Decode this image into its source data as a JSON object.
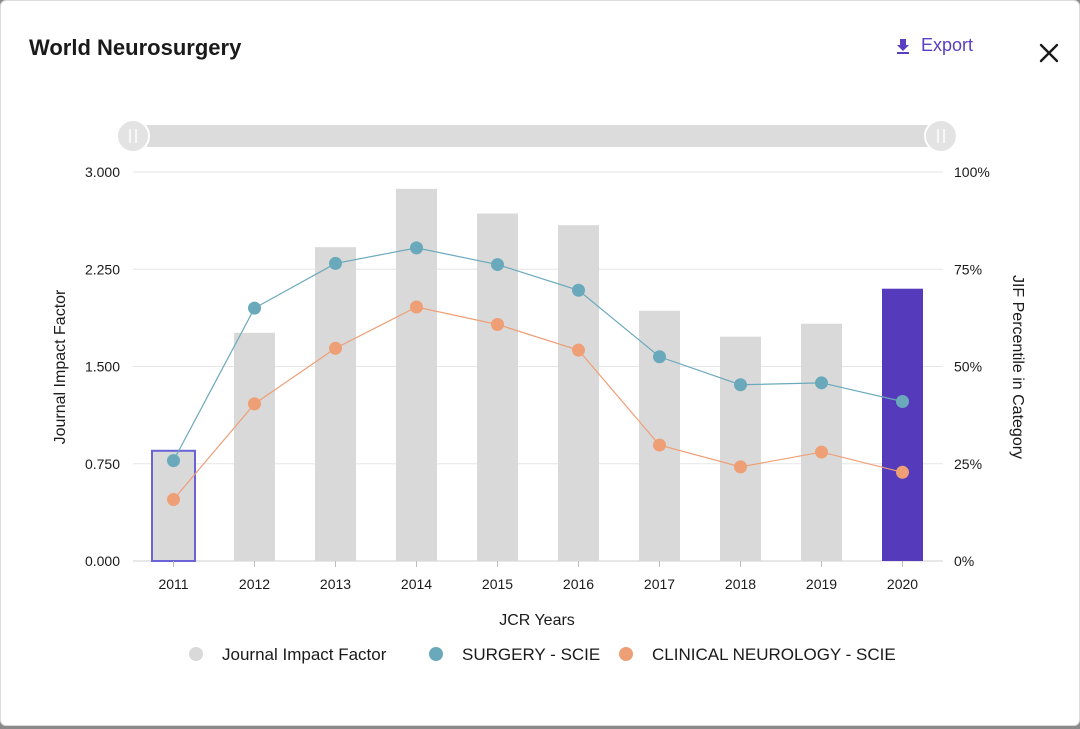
{
  "header": {
    "title": "World Neurosurgery",
    "export_label": "Export",
    "export_icon": "download-icon",
    "close_icon": "close-icon"
  },
  "colors": {
    "bar": "#d9d9d9",
    "bar_selected_fill": "#d9d9d9",
    "bar_selected_border": "#6a63d6",
    "bar_highlight": "#553bbb",
    "surgery": "#6aa9bb",
    "neurology": "#ee9f76",
    "accent": "#5a3fc0"
  },
  "chart_data": {
    "type": "bar",
    "categories": [
      "2011",
      "2012",
      "2013",
      "2014",
      "2015",
      "2016",
      "2017",
      "2018",
      "2019",
      "2020"
    ],
    "xlabel": "JCR Years",
    "ylabel": "Journal Impact Factor",
    "y2label": "JIF Percentile in Category",
    "ylim": [
      0,
      3
    ],
    "y2lim": [
      0,
      100
    ],
    "yticks": [
      "0.000",
      "0.750",
      "1.500",
      "2.250",
      "3.000"
    ],
    "y2ticks": [
      "0%",
      "25%",
      "50%",
      "75%",
      "100%"
    ],
    "grid": true,
    "selected_category": "2011",
    "highlighted_category": "2020",
    "series": [
      {
        "name": "Journal Impact Factor",
        "type": "bar",
        "axis": "left",
        "values": [
          0.85,
          1.76,
          2.42,
          2.87,
          2.68,
          2.59,
          1.93,
          1.73,
          1.83,
          2.1
        ]
      },
      {
        "name": "SURGERY - SCIE",
        "type": "line",
        "axis": "right",
        "values": [
          25.8,
          65.0,
          76.5,
          80.5,
          76.2,
          69.6,
          52.5,
          45.3,
          45.8,
          41.0
        ]
      },
      {
        "name": "CLINICAL NEUROLOGY - SCIE",
        "type": "line",
        "axis": "right",
        "values": [
          15.8,
          40.4,
          54.7,
          65.3,
          60.8,
          54.2,
          29.8,
          24.2,
          28.0,
          22.8
        ]
      }
    ],
    "legend_position": "bottom"
  }
}
